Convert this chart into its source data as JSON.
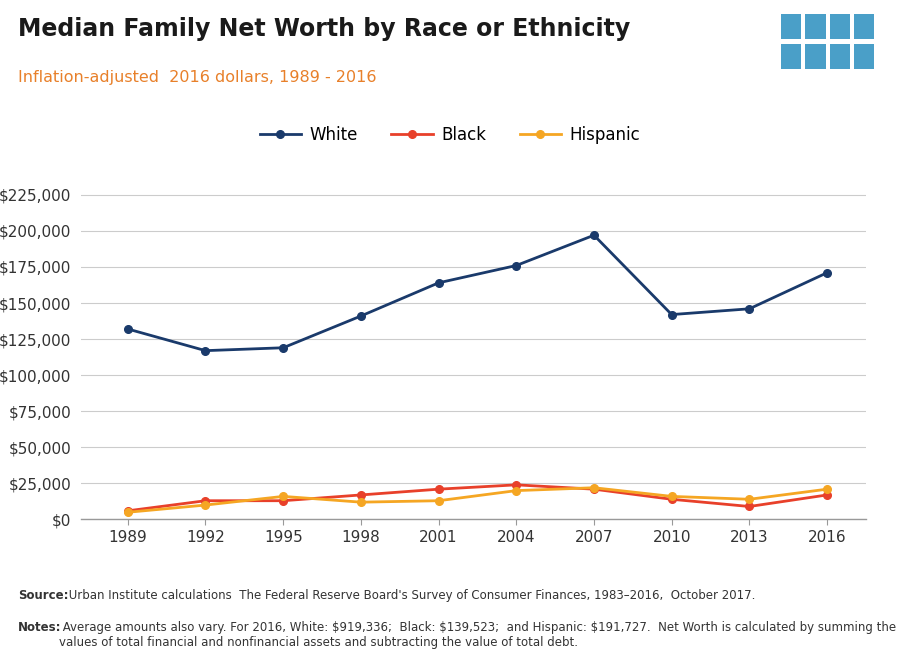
{
  "title": "Median Family Net Worth by Race or Ethnicity",
  "subtitle": "Inflation-adjusted  2016 dollars, 1989 - 2016",
  "years": [
    1989,
    1992,
    1995,
    1998,
    2001,
    2004,
    2007,
    2010,
    2013,
    2016
  ],
  "white": [
    132000,
    117000,
    119000,
    141000,
    164000,
    176000,
    197000,
    142000,
    146000,
    171000
  ],
  "black": [
    6000,
    13000,
    13000,
    17000,
    21000,
    24000,
    21000,
    14000,
    9000,
    17000
  ],
  "hispanic": [
    5000,
    10000,
    16000,
    12000,
    13000,
    20000,
    22000,
    16000,
    14000,
    21000
  ],
  "white_color": "#1a3a6b",
  "black_color": "#e8402a",
  "hispanic_color": "#f5a623",
  "background_color": "#ffffff",
  "grid_color": "#cccccc",
  "ylim": [
    0,
    240000
  ],
  "yticks": [
    0,
    25000,
    50000,
    75000,
    100000,
    125000,
    150000,
    175000,
    200000,
    225000
  ],
  "source_bold": "Source:",
  "source_rest": " Urban Institute calculations  The Federal Reserve Board's Survey of Consumer Finances, 1983–2016,  October 2017.",
  "notes_bold": "Notes:",
  "notes_rest": " Average amounts also vary. For 2016, White: $919,336;  Black: $139,523;  and Hispanic: $191,727.  Net Worth is calculated by summing the\nvalues of total financial and nonfinancial assets and subtracting the value of total debt.",
  "tpc_bg_color": "#1a3a6b",
  "tpc_grid_color": "#4a9fc8",
  "title_color": "#1a1a1a",
  "subtitle_color": "#e8802a",
  "text_color": "#333333"
}
